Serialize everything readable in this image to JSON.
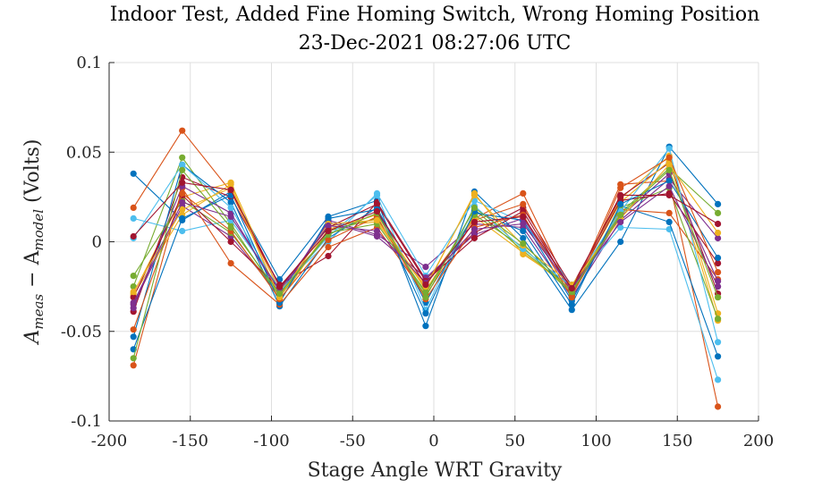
{
  "chart_data": {
    "type": "line",
    "title": "Indoor Test, Added Fine Homing Switch, Wrong Homing Position",
    "subtitle": "23-Dec-2021 08:27:06 UTC",
    "xlabel": "Stage Angle WRT Gravity",
    "ylabel_main": "A",
    "ylabel_sub1": "meas",
    "ylabel_minus": " − A",
    "ylabel_sub2": "model",
    "ylabel_units": " (Volts)",
    "xlim": [
      -200,
      200
    ],
    "ylim": [
      -0.1,
      0.1
    ],
    "xticks": [
      -200,
      -150,
      -100,
      -50,
      0,
      50,
      100,
      150,
      200
    ],
    "xtick_labels": [
      "-200",
      "-150",
      "-100",
      "-50",
      "0",
      "50",
      "100",
      "150",
      "200"
    ],
    "yticks": [
      -0.1,
      -0.05,
      0,
      0.05,
      0.1
    ],
    "ytick_labels": [
      "-0.1",
      "-0.05",
      "0",
      "0.05",
      "0.1"
    ],
    "grid": true,
    "x": [
      -185,
      -155,
      -125,
      -95,
      -65,
      -35,
      -5,
      25,
      55,
      85,
      115,
      145,
      175
    ],
    "series": [
      {
        "color": "#0072BD",
        "values": [
          0.038,
          0.012,
          0.028,
          -0.021,
          0.014,
          0.023,
          -0.047,
          0.028,
          0.002,
          -0.038,
          0.0,
          0.053,
          0.021
        ]
      },
      {
        "color": "#D95319",
        "values": [
          0.019,
          0.062,
          0.028,
          -0.027,
          0.004,
          0.016,
          -0.024,
          0.013,
          0.027,
          -0.029,
          0.032,
          0.034,
          -0.092
        ]
      },
      {
        "color": "#EDB120",
        "values": [
          -0.029,
          0.025,
          0.033,
          -0.028,
          0.009,
          0.011,
          -0.026,
          0.027,
          -0.007,
          -0.025,
          0.024,
          0.048,
          -0.04
        ]
      },
      {
        "color": "#7E2F8E",
        "values": [
          -0.035,
          0.02,
          0.003,
          -0.03,
          0.012,
          0.004,
          -0.014,
          0.01,
          0.008,
          -0.031,
          0.012,
          0.035,
          0.002
        ]
      },
      {
        "color": "#77AC30",
        "values": [
          -0.025,
          0.047,
          0.01,
          -0.031,
          0.006,
          0.013,
          -0.029,
          0.018,
          -0.005,
          -0.027,
          0.016,
          0.041,
          0.016
        ]
      },
      {
        "color": "#4DBEEE",
        "values": [
          0.013,
          0.006,
          0.012,
          -0.026,
          0.0,
          0.027,
          -0.019,
          0.023,
          0.011,
          -0.024,
          0.008,
          0.007,
          -0.077
        ]
      },
      {
        "color": "#A2142F",
        "values": [
          -0.039,
          0.036,
          0.025,
          -0.024,
          -0.008,
          0.022,
          -0.021,
          0.005,
          0.019,
          -0.025,
          0.025,
          0.044,
          -0.029
        ]
      },
      {
        "color": "#0072BD",
        "values": [
          -0.053,
          0.043,
          0.022,
          -0.036,
          0.002,
          0.019,
          -0.034,
          0.016,
          0.012,
          -0.033,
          0.02,
          0.011,
          -0.064
        ]
      },
      {
        "color": "#D95319",
        "values": [
          -0.069,
          0.03,
          -0.012,
          -0.035,
          -0.003,
          0.008,
          -0.03,
          0.012,
          0.021,
          -0.03,
          0.018,
          0.016,
          -0.021
        ]
      },
      {
        "color": "#EDB120",
        "values": [
          -0.03,
          0.015,
          0.032,
          -0.033,
          0.007,
          0.015,
          -0.027,
          0.014,
          -0.006,
          -0.027,
          0.022,
          0.045,
          -0.044
        ]
      },
      {
        "color": "#7E2F8E",
        "values": [
          -0.037,
          0.031,
          0.016,
          -0.029,
          0.011,
          0.003,
          -0.02,
          0.004,
          0.013,
          -0.028,
          0.014,
          0.038,
          -0.022
        ]
      },
      {
        "color": "#77AC30",
        "values": [
          -0.019,
          0.023,
          0.005,
          -0.03,
          0.005,
          0.01,
          -0.028,
          0.015,
          -0.003,
          -0.029,
          0.019,
          0.03,
          -0.043
        ]
      },
      {
        "color": "#4DBEEE",
        "values": [
          0.002,
          0.043,
          0.019,
          -0.028,
          0.003,
          0.026,
          -0.038,
          0.02,
          -0.004,
          -0.025,
          0.017,
          0.052,
          -0.056
        ]
      },
      {
        "color": "#A2142F",
        "values": [
          -0.031,
          0.026,
          0.0,
          -0.026,
          0.008,
          0.021,
          -0.022,
          0.002,
          0.017,
          -0.027,
          0.023,
          0.027,
          -0.012
        ]
      },
      {
        "color": "#0072BD",
        "values": [
          -0.06,
          0.013,
          0.026,
          -0.034,
          0.013,
          0.018,
          -0.04,
          0.017,
          0.006,
          -0.035,
          0.021,
          0.034,
          -0.009
        ]
      },
      {
        "color": "#D95319",
        "values": [
          -0.049,
          0.027,
          0.006,
          -0.032,
          0.001,
          0.014,
          -0.032,
          0.008,
          0.015,
          -0.031,
          0.03,
          0.047,
          -0.017
        ]
      },
      {
        "color": "#EDB120",
        "values": [
          -0.028,
          0.018,
          0.03,
          -0.031,
          0.01,
          0.012,
          -0.025,
          0.026,
          -0.002,
          -0.024,
          0.013,
          0.043,
          0.005
        ]
      },
      {
        "color": "#7E2F8E",
        "values": [
          -0.034,
          0.022,
          0.014,
          -0.027,
          0.009,
          0.006,
          -0.023,
          0.007,
          0.01,
          -0.026,
          0.011,
          0.031,
          -0.025
        ]
      },
      {
        "color": "#77AC30",
        "values": [
          -0.065,
          0.04,
          0.008,
          -0.029,
          0.004,
          0.016,
          -0.031,
          0.019,
          -0.001,
          -0.028,
          0.015,
          0.04,
          -0.031
        ]
      },
      {
        "color": "#A2142F",
        "values": [
          0.003,
          0.033,
          0.029,
          -0.025,
          0.006,
          0.017,
          -0.024,
          0.011,
          0.014,
          -0.026,
          0.026,
          0.026,
          0.01
        ]
      }
    ]
  }
}
